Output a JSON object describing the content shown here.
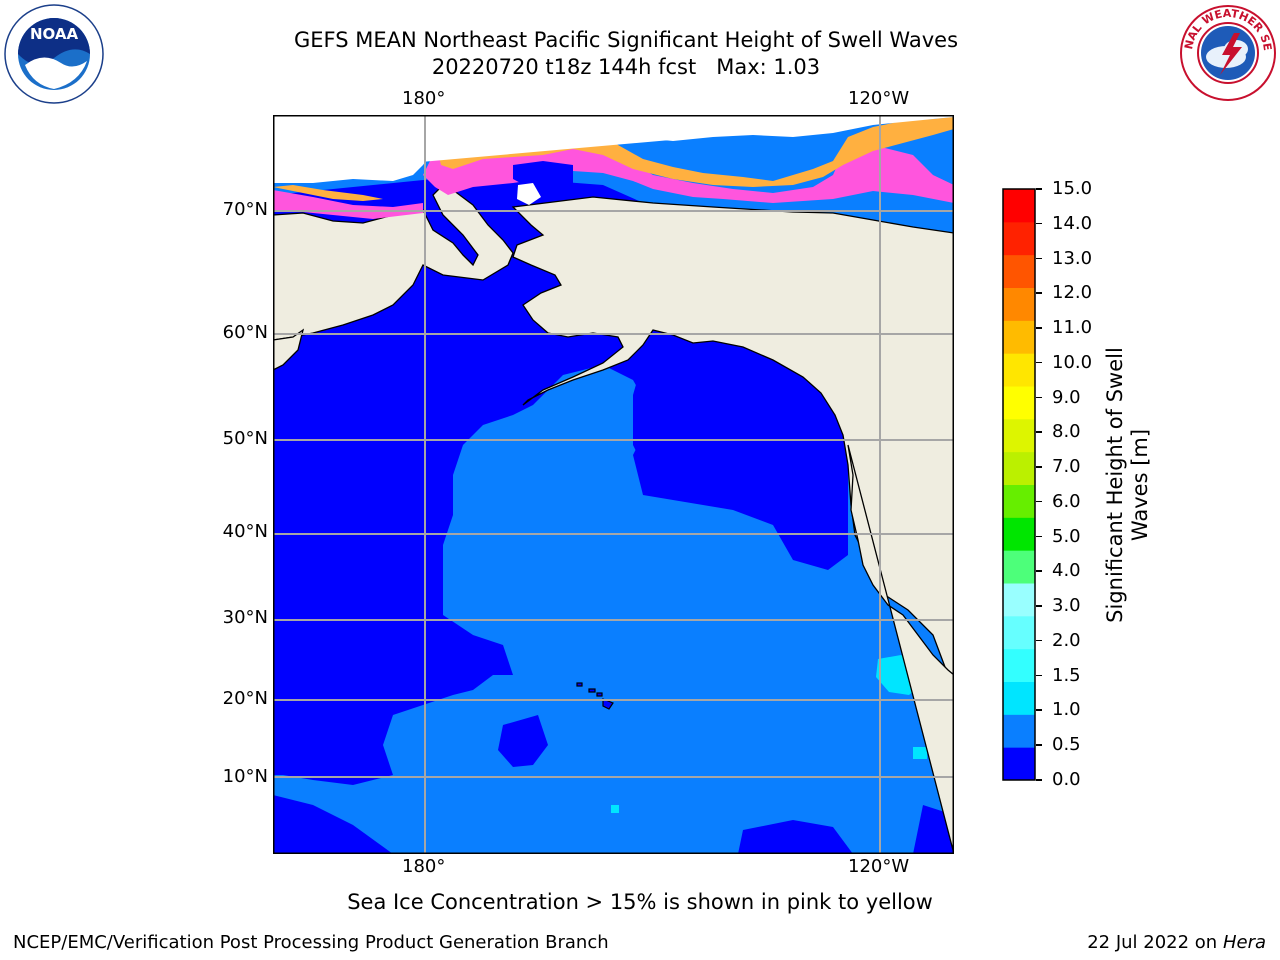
{
  "title": {
    "line1": "GEFS MEAN Northeast Pacific Significant Height of Swell Waves",
    "line2_run": "20220720 t18z 144h fcst",
    "line2_max": "Max: 1.03"
  },
  "logos": {
    "noaa_text": "NOAA",
    "noaa_ring": "NATIONAL OCEANIC AND ATMOSPHERIC ADMINISTRATION · U.S. DEPARTMENT OF COMMERCE",
    "nws_ring": "NATIONAL WEATHER SERVICE"
  },
  "map": {
    "lat_labels": [
      "70°N",
      "60°N",
      "50°N",
      "40°N",
      "30°N",
      "20°N",
      "10°N"
    ],
    "lon_labels_top": [
      "180°",
      "120°W"
    ],
    "lon_labels_bottom": [
      "180°",
      "120°W"
    ]
  },
  "colorbar": {
    "label": "Significant Height of Swell Waves [m]",
    "ticks": [
      "0.0",
      "0.5",
      "1.0",
      "1.5",
      "2.0",
      "3.0",
      "4.0",
      "5.0",
      "6.0",
      "7.0",
      "8.0",
      "9.0",
      "10.0",
      "11.0",
      "12.0",
      "13.0",
      "14.0",
      "15.0"
    ],
    "colors": [
      "#0000ff",
      "#0a7fff",
      "#00e5ff",
      "#33ffff",
      "#66ffff",
      "#99ffff",
      "#4dff7a",
      "#00e600",
      "#66ee00",
      "#bbf000",
      "#ddf500",
      "#ffff00",
      "#ffe600",
      "#ffbb00",
      "#ff8800",
      "#ff5500",
      "#ff2200",
      "#ff0000"
    ]
  },
  "colors": {
    "land": "#efede0",
    "deep_blue": "#0000ff",
    "mid_blue": "#0a7fff",
    "cyan": "#00e5ff",
    "ice_pink": "#ff55dd",
    "ice_orange": "#ffb040"
  },
  "note": "Sea Ice Concentration > 15% is shown in pink to yellow",
  "footer": {
    "left": "NCEP/EMC/Verification Post Processing Product Generation Branch",
    "right_date": "22 Jul 2022 on ",
    "right_host": "Hera"
  }
}
